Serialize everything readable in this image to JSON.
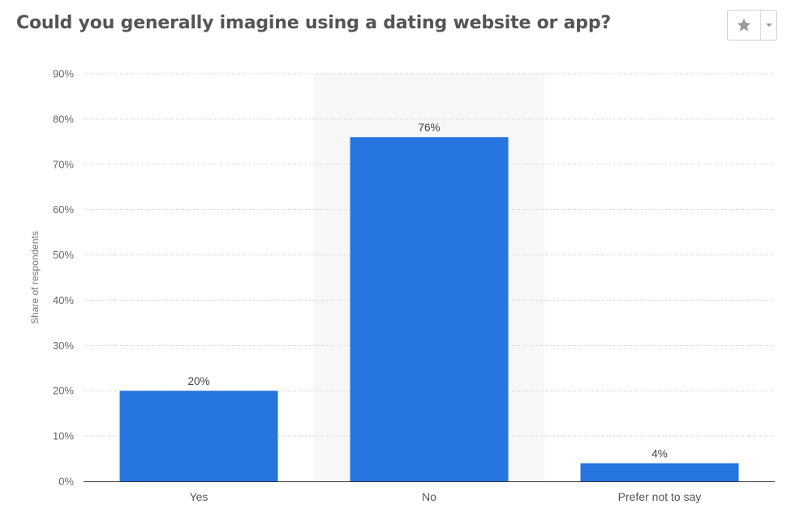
{
  "header": {
    "title": "Could you generally imagine using a dating website or app?"
  },
  "toolbar": {
    "favorite_icon": "star-icon",
    "menu_icon": "caret-down-icon"
  },
  "colors": {
    "bar": "#2775de",
    "highlight_band": "#f7f7f7",
    "grid": "#c8c8c8"
  },
  "chart_data": {
    "type": "bar",
    "categories": [
      "Yes",
      "No",
      "Prefer not to say"
    ],
    "values": [
      20,
      76,
      4
    ],
    "value_labels": [
      "20%",
      "76%",
      "4%"
    ],
    "ylabel": "Share of respondents",
    "xlabel": "",
    "ylim": [
      0,
      90
    ],
    "yticks": [
      0,
      10,
      20,
      30,
      40,
      50,
      60,
      70,
      80,
      90
    ],
    "ytick_labels": [
      "0%",
      "10%",
      "20%",
      "30%",
      "40%",
      "50%",
      "60%",
      "70%",
      "80%",
      "90%"
    ],
    "highlighted_category": "No",
    "grid": true,
    "legend": "none"
  }
}
